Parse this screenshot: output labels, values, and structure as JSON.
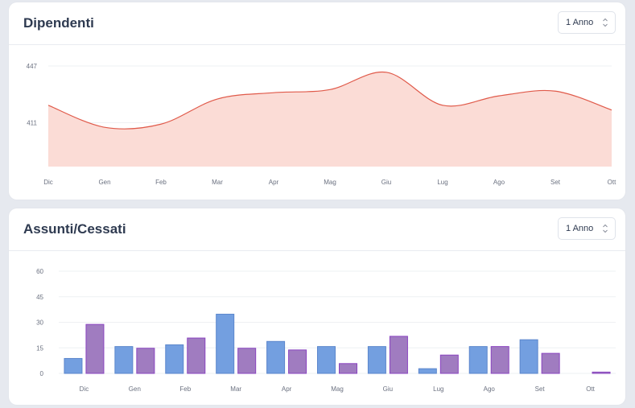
{
  "cards": [
    {
      "title": "Dipendenti",
      "period": {
        "selected": "1 Anno",
        "icon": "up-down-chevron-icon"
      }
    },
    {
      "title": "Assunti/Cessati",
      "period": {
        "selected": "1 Anno",
        "icon": "up-down-chevron-icon"
      }
    }
  ],
  "colors": {
    "area_line": "#e05a4a",
    "area_fill": "#fbdcd6",
    "bar_a_fill": "#739fe0",
    "bar_a_stroke": "#5b86cc",
    "bar_b_fill": "#a07cc0",
    "bar_b_stroke": "#8a44c0",
    "text": "#2e3a50",
    "tick": "#6b7180",
    "grid": "#eef0f3"
  },
  "chart_data": [
    {
      "type": "area",
      "title": "Dipendenti",
      "categories": [
        "Dic",
        "Gen",
        "Feb",
        "Mar",
        "Apr",
        "Mag",
        "Giu",
        "Lug",
        "Ago",
        "Set",
        "Ott"
      ],
      "values": [
        422,
        408,
        410,
        426,
        430,
        432,
        443,
        422,
        428,
        431,
        419
      ],
      "y_ticks": [
        411,
        447
      ],
      "ylim": [
        383,
        447
      ],
      "smooth": true,
      "grid": true,
      "legend": "none"
    },
    {
      "type": "bar",
      "title": "Assunti/Cessati",
      "categories": [
        "Dic",
        "Gen",
        "Feb",
        "Mar",
        "Apr",
        "Mag",
        "Giu",
        "Lug",
        "Ago",
        "Set",
        "Ott"
      ],
      "series": [
        {
          "values": [
            9,
            16,
            17,
            35,
            19,
            16,
            16,
            3,
            16,
            20,
            0
          ]
        },
        {
          "values": [
            29,
            15,
            21,
            15,
            14,
            6,
            22,
            11,
            16,
            12,
            1
          ]
        }
      ],
      "y_ticks": [
        0,
        15,
        30,
        45,
        60
      ],
      "ylim": [
        0,
        60
      ],
      "grid": true,
      "legend": "none"
    }
  ]
}
